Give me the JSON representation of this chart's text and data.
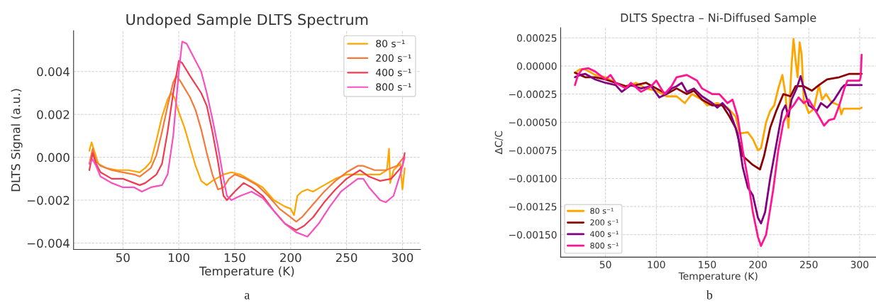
{
  "chart_data": [
    {
      "type": "line",
      "title": "Undoped Sample DLTS Spectrum",
      "xlabel": "Temperature (K)",
      "ylabel": "DLTS Signal (a.u.)",
      "xlim": [
        5.9,
        316.1
      ],
      "ylim": [
        -0.0043,
        0.0059
      ],
      "xticks": [
        50,
        100,
        150,
        200,
        250,
        300
      ],
      "yticks": [
        {
          "value": -0.004,
          "label": "−0.004"
        },
        {
          "value": -0.002,
          "label": "−0.002"
        },
        {
          "value": 0,
          "label": "0.000"
        },
        {
          "value": 0.002,
          "label": "0.002"
        },
        {
          "value": 0.004,
          "label": "0.004"
        }
      ],
      "grid": true,
      "legend": "top right",
      "annotations": [
        "a"
      ],
      "series": [
        {
          "name": "80 s⁻¹",
          "color": "#ffa500",
          "x": [
            20,
            22,
            25,
            28,
            35,
            45,
            55,
            65,
            70,
            75,
            80,
            85,
            90,
            93,
            96,
            100,
            105,
            110,
            115,
            120,
            125,
            130,
            140,
            147,
            155,
            165,
            175,
            185,
            195,
            200,
            203,
            206,
            210,
            215,
            220,
            230,
            240,
            250,
            260,
            270,
            280,
            286,
            288,
            289,
            292,
            298,
            300,
            302
          ],
          "values": [
            0.0003,
            0.0007,
            0.0002,
            -0.0003,
            -0.0005,
            -0.0006,
            -0.0006,
            -0.0007,
            -0.0005,
            -0.0002,
            0.0008,
            0.0019,
            0.0027,
            0.003,
            0.0028,
            0.0021,
            0.0014,
            0.0005,
            -0.0004,
            -0.0011,
            -0.0013,
            -0.0011,
            -0.0008,
            -0.0007,
            -0.0008,
            -0.0011,
            -0.0014,
            -0.002,
            -0.0023,
            -0.0024,
            -0.0027,
            -0.0018,
            -0.0016,
            -0.0015,
            -0.0016,
            -0.0013,
            -0.001,
            -0.0008,
            -0.0008,
            -0.0008,
            -0.0008,
            -0.0006,
            0.0004,
            -0.0012,
            -0.0006,
            -0.0003,
            -0.0015,
            -0.0005
          ]
        },
        {
          "name": "200 s⁻¹",
          "color": "#f5793a",
          "x": [
            20,
            23,
            26,
            30,
            40,
            50,
            60,
            65,
            70,
            75,
            80,
            85,
            90,
            95,
            98,
            102,
            110,
            115,
            120,
            125,
            130,
            135,
            140,
            145,
            150,
            160,
            170,
            180,
            190,
            200,
            205,
            210,
            220,
            230,
            240,
            250,
            260,
            265,
            275,
            285,
            295,
            301
          ],
          "values": [
            -0.0003,
            0.0004,
            -0.0002,
            -0.0004,
            -0.0006,
            -0.0007,
            -0.0008,
            -0.0009,
            -0.0007,
            -0.0005,
            0.0001,
            0.0012,
            0.0024,
            0.0035,
            0.0038,
            0.0035,
            0.0028,
            0.0022,
            0.0013,
            0.0002,
            -0.0008,
            -0.0015,
            -0.0014,
            -0.001,
            -0.0008,
            -0.001,
            -0.0013,
            -0.0018,
            -0.0024,
            -0.0028,
            -0.003,
            -0.0028,
            -0.0022,
            -0.0016,
            -0.0011,
            -0.0007,
            -0.0004,
            -0.0004,
            -0.0006,
            -0.0006,
            -0.0004,
            0.0
          ]
        },
        {
          "name": "400 s⁻¹",
          "color": "#f03c50",
          "x": [
            20,
            23,
            26,
            30,
            40,
            50,
            60,
            65,
            70,
            80,
            85,
            90,
            95,
            100,
            103,
            110,
            120,
            125,
            130,
            135,
            140,
            143,
            150,
            158,
            165,
            175,
            185,
            195,
            205,
            212,
            220,
            230,
            240,
            250,
            262,
            270,
            280,
            290,
            300,
            302
          ],
          "values": [
            -0.0006,
            0.0002,
            -0.0003,
            -0.0007,
            -0.001,
            -0.001,
            -0.0012,
            -0.0013,
            -0.0012,
            -0.0008,
            -0.0003,
            0.0012,
            0.003,
            0.0045,
            0.0044,
            0.0038,
            0.003,
            0.0024,
            0.0012,
            -0.0002,
            -0.0018,
            -0.002,
            -0.0016,
            -0.0012,
            -0.0014,
            -0.0018,
            -0.0025,
            -0.0031,
            -0.0034,
            -0.0032,
            -0.0028,
            -0.0021,
            -0.0015,
            -0.001,
            -0.0006,
            -0.0009,
            -0.0011,
            -0.001,
            -0.0004,
            0.0002
          ]
        },
        {
          "name": "800 s⁻¹",
          "color": "#f552c0",
          "x": [
            20,
            23,
            26,
            30,
            40,
            50,
            60,
            67,
            75,
            85,
            90,
            95,
            100,
            103,
            107,
            115,
            120,
            125,
            130,
            135,
            140,
            143,
            147,
            155,
            165,
            175,
            185,
            195,
            205,
            215,
            225,
            235,
            245,
            255,
            260,
            265,
            270,
            280,
            285,
            292,
            298,
            302
          ],
          "values": [
            -0.0003,
            -0.0001,
            -0.0004,
            -0.0009,
            -0.0012,
            -0.0014,
            -0.0014,
            -0.0016,
            -0.0014,
            -0.0013,
            -0.0008,
            0.001,
            0.004,
            0.0054,
            0.0053,
            0.0045,
            0.004,
            0.003,
            0.0018,
            0.0005,
            -0.001,
            -0.0018,
            -0.002,
            -0.0018,
            -0.0016,
            -0.0019,
            -0.0025,
            -0.0031,
            -0.0035,
            -0.0037,
            -0.0031,
            -0.0023,
            -0.0016,
            -0.0012,
            -0.001,
            -0.001,
            -0.0014,
            -0.002,
            -0.0021,
            -0.0018,
            -0.0008,
            0.0
          ]
        }
      ]
    },
    {
      "type": "line",
      "title": "DLTS Spectra – Ni-Diffused Sample",
      "xlabel": "Temperature (K)",
      "ylabel": "ΔC/C",
      "xlim": [
        5.9,
        316.1
      ],
      "ylim": [
        -0.0017,
        0.00034
      ],
      "xticks": [
        50,
        100,
        150,
        200,
        250,
        300
      ],
      "yticks": [
        {
          "value": -0.0015,
          "label": "−0.00150"
        },
        {
          "value": -0.00125,
          "label": "−0.00125"
        },
        {
          "value": -0.001,
          "label": "−0.00100"
        },
        {
          "value": -0.00075,
          "label": "−0.00075"
        },
        {
          "value": -0.0005,
          "label": "−0.00050"
        },
        {
          "value": -0.00025,
          "label": "−0.00025"
        },
        {
          "value": 0,
          "label": "0.00000"
        },
        {
          "value": 0.00025,
          "label": "0.00025"
        }
      ],
      "grid": true,
      "legend": "bottom left",
      "annotations": [
        "b"
      ],
      "series": [
        {
          "name": "80 s⁻¹",
          "color": "#ffa500",
          "x": [
            20,
            25,
            30,
            40,
            50,
            60,
            70,
            80,
            90,
            100,
            110,
            120,
            128,
            135,
            145,
            150,
            160,
            170,
            178,
            182,
            190,
            195,
            200,
            203,
            208,
            212,
            216,
            220,
            224,
            227,
            230,
            233,
            235,
            237,
            239,
            241,
            243,
            245,
            250,
            255,
            260,
            263,
            267,
            272,
            280,
            282,
            284,
            300,
            302
          ],
          "values": [
            -6e-05,
            -3e-05,
            -3e-05,
            -8e-05,
            -0.0001,
            -0.00015,
            -0.00018,
            -0.00015,
            -0.0002,
            -0.00022,
            -0.00027,
            -0.00027,
            -0.00033,
            -0.00025,
            -0.0003,
            -0.00035,
            -0.00033,
            -0.00037,
            -0.00045,
            -0.0006,
            -0.00059,
            -0.00065,
            -0.00075,
            -0.00073,
            -0.0005,
            -0.0004,
            -0.00035,
            -0.0002,
            -8e-05,
            -0.00025,
            -0.00055,
            0.0,
            0.00024,
            5e-05,
            -0.0001,
            0.00021,
            0.0001,
            -0.0003,
            -0.00042,
            -0.00038,
            -0.00017,
            -0.0003,
            -0.00025,
            -0.00032,
            -0.00035,
            -0.00043,
            -0.00038,
            -0.00038,
            -0.00037
          ]
        },
        {
          "name": "200 s⁻¹",
          "color": "#8b0000",
          "x": [
            20,
            25,
            30,
            40,
            50,
            60,
            70,
            80,
            90,
            100,
            110,
            120,
            130,
            137,
            145,
            155,
            165,
            172,
            178,
            185,
            195,
            202,
            206,
            212,
            218,
            225,
            232,
            237,
            245,
            253,
            260,
            268,
            280,
            290,
            300,
            302
          ],
          "values": [
            -6e-05,
            -8e-05,
            -0.0001,
            -0.0001,
            -0.00012,
            -0.00015,
            -0.00018,
            -0.00017,
            -0.00015,
            -0.0002,
            -0.00025,
            -0.0002,
            -0.00025,
            -0.00022,
            -0.0003,
            -0.00035,
            -0.00035,
            -0.00045,
            -0.00055,
            -0.0008,
            -0.00088,
            -0.00092,
            -0.0008,
            -0.00055,
            -0.0004,
            -0.00025,
            -0.00027,
            -0.00018,
            -0.00018,
            -0.00022,
            -0.00017,
            -0.00012,
            -0.0001,
            -7e-05,
            -7e-05,
            -7e-05
          ]
        },
        {
          "name": "400 s⁻¹",
          "color": "#800080",
          "x": [
            20,
            25,
            30,
            40,
            50,
            60,
            66,
            75,
            85,
            95,
            103,
            110,
            115,
            120,
            125,
            130,
            137,
            145,
            155,
            160,
            165,
            172,
            180,
            185,
            190,
            195,
            200,
            203,
            207,
            212,
            218,
            224,
            227,
            230,
            233,
            238,
            242,
            245,
            250,
            258,
            262,
            268,
            275,
            282,
            285,
            300,
            302
          ],
          "values": [
            -0.0001,
            -8e-05,
            -7e-05,
            -0.00012,
            -0.00015,
            -0.00017,
            -0.00023,
            -0.00017,
            -0.0002,
            -0.00018,
            -0.00028,
            -0.00025,
            -0.0002,
            -0.00018,
            -0.00015,
            -0.00023,
            -0.0002,
            -0.00027,
            -0.00033,
            -0.00037,
            -0.00033,
            -0.0004,
            -0.0006,
            -0.0009,
            -0.00108,
            -0.00115,
            -0.00135,
            -0.0014,
            -0.0013,
            -0.001,
            -0.0007,
            -0.0004,
            -0.00035,
            -0.00045,
            -0.0003,
            -0.0002,
            -9e-05,
            -0.0002,
            -0.00035,
            -0.0004,
            -0.00033,
            -0.00037,
            -0.0003,
            -0.0002,
            -0.00017,
            -0.00017,
            -0.00017
          ]
        },
        {
          "name": "800 s⁻¹",
          "color": "#ff1493",
          "x": [
            20,
            23,
            27,
            33,
            40,
            50,
            55,
            60,
            70,
            75,
            85,
            95,
            100,
            108,
            115,
            120,
            130,
            140,
            145,
            155,
            162,
            170,
            175,
            180,
            185,
            190,
            195,
            200,
            203,
            208,
            215,
            220,
            225,
            230,
            235,
            240,
            245,
            250,
            260,
            265,
            270,
            275,
            280,
            285,
            288,
            300,
            301,
            302
          ],
          "values": [
            -0.00017,
            -8e-05,
            -3e-05,
            -2e-05,
            -5e-05,
            -0.00012,
            -8e-05,
            -0.00015,
            -0.0002,
            -0.00015,
            -0.00023,
            -0.00018,
            -0.00013,
            -0.00025,
            -0.00018,
            -0.0001,
            -8e-05,
            -0.00013,
            -0.0002,
            -0.00025,
            -0.00025,
            -0.00033,
            -0.0003,
            -0.00045,
            -0.00075,
            -0.001,
            -0.0013,
            -0.00152,
            -0.0016,
            -0.0015,
            -0.0011,
            -0.00075,
            -0.0005,
            -0.0004,
            -0.00035,
            -0.00028,
            -0.00033,
            -0.0003,
            -0.00045,
            -0.00053,
            -0.00048,
            -0.00047,
            -0.00035,
            -0.0002,
            -0.00013,
            -0.00013,
            -0.0001,
            0.0001
          ]
        }
      ]
    }
  ]
}
